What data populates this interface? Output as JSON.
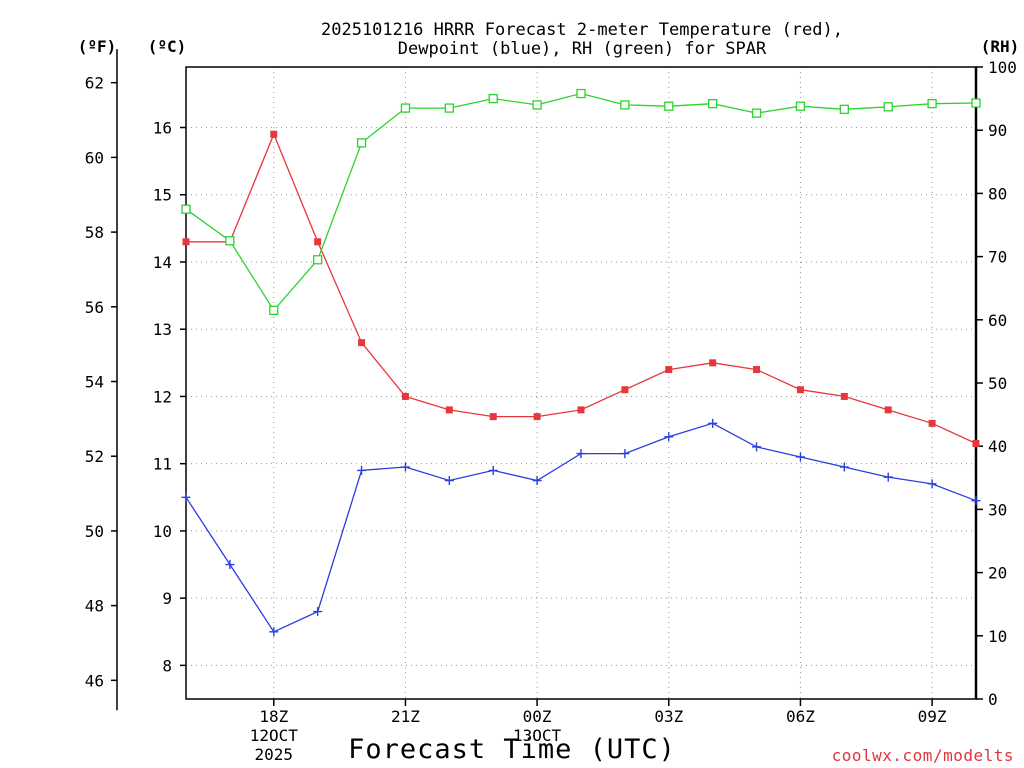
{
  "chart_data": {
    "type": "line",
    "title_line1": "2025101216 HRRR Forecast 2-meter Temperature (red),",
    "title_line2": "Dewpoint (blue), RH (green) for SPAR",
    "xlabel": "Forecast Time (UTC)",
    "credit": "coolwx.com/modelts",
    "units": {
      "fahrenheit": "(ºF)",
      "celsius": "(ºC)",
      "rh": "(RH)"
    },
    "x_hours": [
      16,
      17,
      18,
      19,
      20,
      21,
      22,
      23,
      24,
      25,
      26,
      27,
      28,
      29,
      30,
      31,
      32,
      33,
      34
    ],
    "xlim": [
      16,
      34
    ],
    "x_ticks": [
      {
        "hour": 18,
        "label": "18Z",
        "sub1": "12OCT",
        "sub2": "2025"
      },
      {
        "hour": 21,
        "label": "21Z",
        "sub1": "",
        "sub2": ""
      },
      {
        "hour": 24,
        "label": "00Z",
        "sub1": "13OCT",
        "sub2": ""
      },
      {
        "hour": 27,
        "label": "03Z",
        "sub1": "",
        "sub2": ""
      },
      {
        "hour": 30,
        "label": "06Z",
        "sub1": "",
        "sub2": ""
      },
      {
        "hour": 33,
        "label": "09Z",
        "sub1": "",
        "sub2": ""
      }
    ],
    "y_celsius": {
      "ylim": [
        7.5,
        16.9
      ],
      "ticks": [
        8,
        9,
        10,
        11,
        12,
        13,
        14,
        15,
        16
      ]
    },
    "y_fahrenheit": {
      "ticks": [
        46,
        48,
        50,
        52,
        54,
        56,
        58,
        60,
        62
      ]
    },
    "y_rh": {
      "ylim": [
        0,
        100
      ],
      "ticks": [
        0,
        10,
        20,
        30,
        40,
        50,
        60,
        70,
        80,
        90,
        100
      ]
    },
    "series": [
      {
        "name": "2-meter Temperature",
        "axis": "celsius",
        "color": "#e8373c",
        "marker": "filled-square",
        "values": [
          14.3,
          14.3,
          15.9,
          14.3,
          12.8,
          12.0,
          11.8,
          11.7,
          11.7,
          11.8,
          12.1,
          12.4,
          12.5,
          12.4,
          12.1,
          12.0,
          11.8,
          11.6,
          11.3
        ]
      },
      {
        "name": "Dewpoint",
        "axis": "celsius",
        "color": "#2a3ee0",
        "marker": "plus",
        "values": [
          10.5,
          9.5,
          8.5,
          8.8,
          10.9,
          10.95,
          10.75,
          10.9,
          10.75,
          11.15,
          11.15,
          11.4,
          11.6,
          11.25,
          11.1,
          10.95,
          10.8,
          10.7,
          10.45
        ]
      },
      {
        "name": "Relative Humidity",
        "axis": "rh",
        "color": "#2ad42e",
        "marker": "open-square",
        "values": [
          77.5,
          72.5,
          61.5,
          69.5,
          88.0,
          93.5,
          93.5,
          95.0,
          94.0,
          95.8,
          94.0,
          93.8,
          94.2,
          92.7,
          93.8,
          93.3,
          93.7,
          94.2,
          94.3
        ]
      }
    ]
  }
}
